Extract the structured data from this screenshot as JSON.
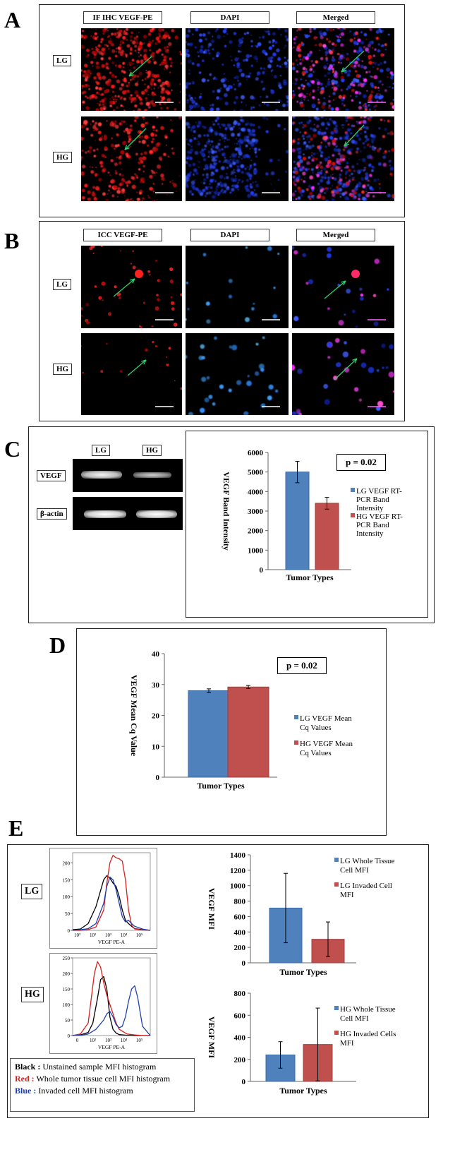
{
  "panel_a": {
    "letter": "A",
    "col_headers": [
      "IF IHC VEGF-PE",
      "DAPI",
      "Merged"
    ],
    "row_labels": [
      "LG",
      "HG"
    ]
  },
  "panel_b": {
    "letter": "B",
    "col_headers": [
      "ICC VEGF-PE",
      "DAPI",
      "Merged"
    ],
    "row_labels": [
      "LG",
      "HG"
    ]
  },
  "panel_c": {
    "letter": "C",
    "lane_labels": [
      "LG",
      "HG"
    ],
    "band_labels": [
      "VEGF",
      "β-actin"
    ],
    "pvalue": "p = 0.02"
  },
  "panel_d": {
    "letter": "D",
    "pvalue": "p = 0.02"
  },
  "panel_e": {
    "letter": "E",
    "hist_labels": [
      "LG",
      "HG"
    ],
    "hist_xlabel": "VEGF PE-A",
    "key": [
      {
        "name": "Black :",
        "text": " Unstained sample MFI histogram",
        "color": "#000000"
      },
      {
        "name": "Red :",
        "text": " Whole tumor tissue cell MFI histogram",
        "color": "#d62020"
      },
      {
        "name": "Blue :",
        "text": " Invaded cell MFI histogram",
        "color": "#1f3fb0"
      }
    ]
  },
  "colors": {
    "blue_bar": "#4f81bd",
    "red_bar": "#c0504d",
    "tissue_red": "#ff2020",
    "dapi_blue": "#3050ff"
  },
  "chart_data": [
    {
      "id": "c",
      "type": "bar",
      "ylabel": "VEGF Band Intensity",
      "xlabel": "Tumor Types",
      "ylim": [
        0,
        6000
      ],
      "yticks": [
        0,
        1000,
        2000,
        3000,
        4000,
        5000,
        6000
      ],
      "series": [
        {
          "name": "LG VEGF RT-PCR Band Intensity",
          "legend_lines": [
            "LG VEGF RT-",
            "PCR Band",
            "Intensity"
          ],
          "value": 5000,
          "error": 550,
          "color": "#4f81bd"
        },
        {
          "name": "HG VEGF RT-PCR Band Intensity",
          "legend_lines": [
            "HG VEGF RT-",
            "PCR Band",
            "Intensity"
          ],
          "value": 3400,
          "error": 300,
          "color": "#c0504d"
        }
      ]
    },
    {
      "id": "d",
      "type": "bar",
      "ylabel": "VEGF Mean Cq Value",
      "xlabel": "Tumor Types",
      "ylim": [
        0,
        40
      ],
      "yticks": [
        0,
        10,
        20,
        30,
        40
      ],
      "series": [
        {
          "name": "LG VEGF Mean Cq Values",
          "legend_lines": [
            "LG VEGF Mean",
            "Cq Values"
          ],
          "value": 28,
          "error": 0.6,
          "color": "#4f81bd"
        },
        {
          "name": "HG VEGF Mean Cq Values",
          "legend_lines": [
            "HG VEGF Mean",
            "Cq Values"
          ],
          "value": 29.2,
          "error": 0.5,
          "color": "#c0504d"
        }
      ]
    },
    {
      "id": "e1",
      "type": "bar",
      "ylabel": "VEGF MFI",
      "xlabel": "Tumor Types",
      "ylim": [
        0,
        1400
      ],
      "yticks": [
        0,
        200,
        400,
        600,
        800,
        1000,
        1200,
        1400
      ],
      "series": [
        {
          "name": "LG Whole Tissue Cell MFI",
          "legend_lines": [
            "LG Whole Tissue",
            "Cell MFI"
          ],
          "value": 710,
          "error": 450,
          "color": "#4f81bd"
        },
        {
          "name": "LG Invaded Cell MFI",
          "legend_lines": [
            "LG Invaded Cell",
            "MFI"
          ],
          "value": 305,
          "error": 225,
          "color": "#c0504d"
        }
      ]
    },
    {
      "id": "e2",
      "type": "bar",
      "ylabel": "VEGF MFI",
      "xlabel": "Tumor Types",
      "ylim": [
        0,
        800
      ],
      "yticks": [
        0,
        200,
        400,
        600,
        800
      ],
      "series": [
        {
          "name": "HG Whole Tissue Cell MFI",
          "legend_lines": [
            "HG Whole Tissue",
            "Cell MFI"
          ],
          "value": 240,
          "error": 120,
          "color": "#4f81bd"
        },
        {
          "name": "HG Invaded Cells MFI",
          "legend_lines": [
            "HG Invaded Cells",
            "MFI"
          ],
          "value": 335,
          "error": 330,
          "color": "#c0504d"
        }
      ]
    },
    {
      "id": "hist_lg",
      "type": "line",
      "xlabel": "VEGF PE-A",
      "ylim": [
        0,
        230
      ],
      "yticks": [
        0,
        50,
        100,
        150,
        200
      ],
      "xticks": [
        "10³",
        "10²",
        "10³",
        "10⁴",
        "10⁵"
      ],
      "series": [
        {
          "name": "Black",
          "color": "#000000",
          "x": [
            0,
            0.5,
            1,
            1.5,
            2,
            2.2,
            2.4,
            2.6,
            2.8,
            3,
            3.2,
            3.4,
            3.6,
            3.8,
            4,
            4.5,
            5
          ],
          "y": [
            2,
            4,
            20,
            70,
            150,
            162,
            155,
            140,
            130,
            100,
            60,
            30,
            20,
            12,
            5,
            2,
            0
          ]
        },
        {
          "name": "Red",
          "color": "#d62020",
          "x": [
            0,
            0.5,
            1,
            1.5,
            2,
            2.2,
            2.4,
            2.6,
            2.8,
            3,
            3.2,
            3.4,
            3.6,
            3.8,
            4,
            4.5,
            5
          ],
          "y": [
            0,
            0,
            2,
            10,
            60,
            140,
            200,
            222,
            215,
            212,
            205,
            150,
            60,
            15,
            4,
            1,
            0
          ]
        },
        {
          "name": "Blue",
          "color": "#1f3fb0",
          "x": [
            0,
            0.5,
            1,
            1.5,
            2,
            2.2,
            2.4,
            2.6,
            2.8,
            3,
            3.2,
            3.4,
            3.6,
            3.8,
            4,
            4.5,
            5
          ],
          "y": [
            0,
            2,
            5,
            20,
            80,
            130,
            158,
            150,
            120,
            80,
            40,
            25,
            30,
            20,
            12,
            4,
            0
          ]
        }
      ]
    },
    {
      "id": "hist_hg",
      "type": "line",
      "xlabel": "VEGF PE-A",
      "ylim": [
        0,
        250
      ],
      "yticks": [
        0,
        50,
        100,
        150,
        200,
        250
      ],
      "xticks": [
        "0",
        "10²",
        "10³",
        "10⁴",
        "10⁵"
      ],
      "series": [
        {
          "name": "Black",
          "color": "#000000",
          "x": [
            0,
            0.5,
            1,
            1.3,
            1.6,
            1.8,
            2,
            2.2,
            2.4,
            2.6,
            2.8,
            3,
            3.5,
            4,
            4.5,
            5
          ],
          "y": [
            0,
            2,
            10,
            40,
            120,
            180,
            190,
            150,
            60,
            20,
            8,
            3,
            1,
            0,
            0,
            0
          ]
        },
        {
          "name": "Red",
          "color": "#d62020",
          "x": [
            0,
            0.5,
            1,
            1.2,
            1.4,
            1.6,
            1.8,
            2,
            2.2,
            2.4,
            2.6,
            2.8,
            3,
            3.5,
            4,
            4.5,
            5
          ],
          "y": [
            0,
            5,
            40,
            120,
            200,
            238,
            220,
            170,
            130,
            100,
            70,
            40,
            20,
            5,
            2,
            0,
            0
          ]
        },
        {
          "name": "Blue",
          "color": "#1f3fb0",
          "x": [
            0,
            0.5,
            1,
            1.5,
            2,
            2.2,
            2.4,
            2.6,
            2.8,
            3,
            3.2,
            3.4,
            3.6,
            3.8,
            4,
            4.2,
            4.5,
            5
          ],
          "y": [
            0,
            1,
            5,
            20,
            50,
            70,
            78,
            60,
            35,
            25,
            30,
            60,
            110,
            150,
            160,
            120,
            30,
            0
          ]
        }
      ]
    }
  ]
}
